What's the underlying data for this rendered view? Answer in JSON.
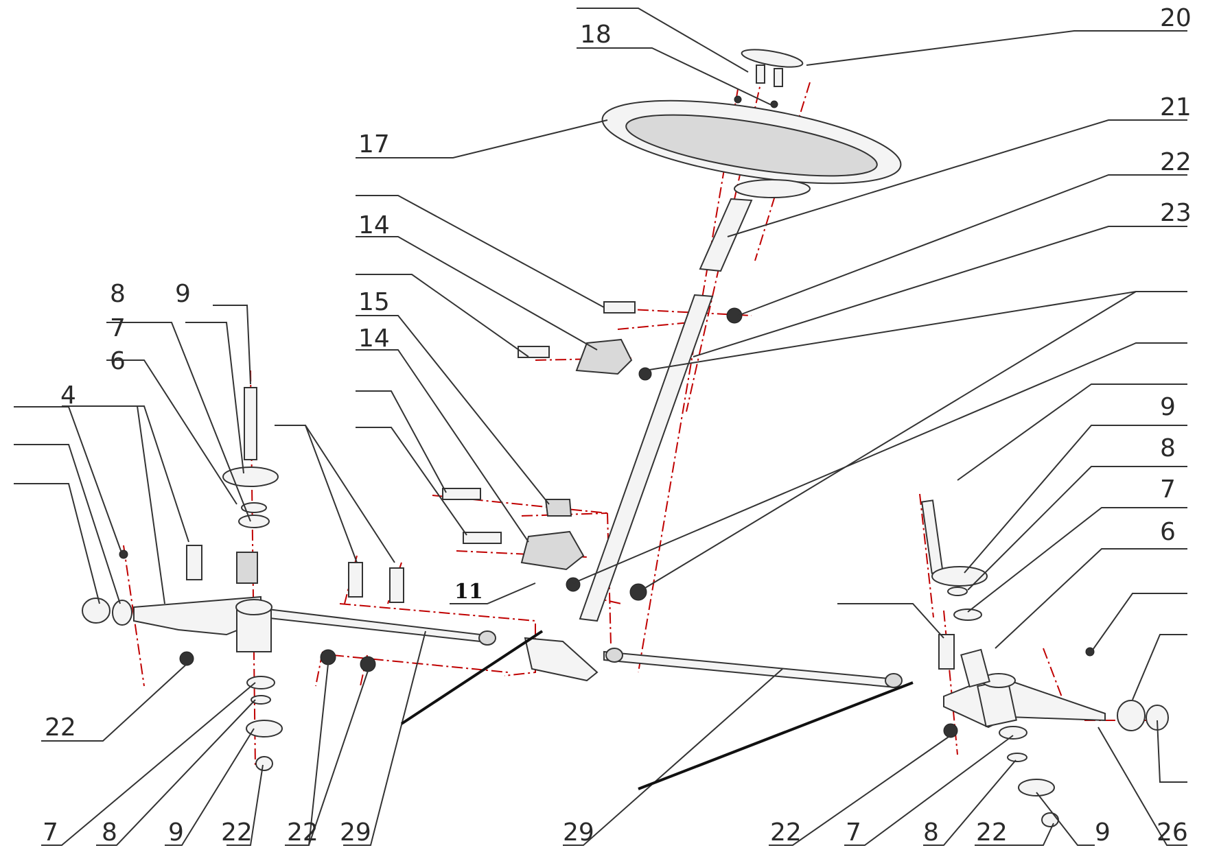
{
  "labels": {
    "l18": "18",
    "l20": "20",
    "l17": "17",
    "l21": "21",
    "l22a": "22",
    "l23": "23",
    "l14a": "14",
    "l15": "15",
    "l14b": "14",
    "l11": "11",
    "l8a": "8",
    "l9a": "9",
    "l7a": "7",
    "l6a": "6",
    "l4": "4",
    "l9b": "9",
    "l8b": "8",
    "l7b": "7",
    "l6b": "6",
    "l22b": "22",
    "b7": "7",
    "b8": "8",
    "b9": "9",
    "b22a": "22",
    "b22b": "22",
    "b29a": "29",
    "b29b": "29",
    "b22c": "22",
    "b7b": "7",
    "b8b": "8",
    "b22d": "22",
    "b9b": "9",
    "b26": "26"
  }
}
